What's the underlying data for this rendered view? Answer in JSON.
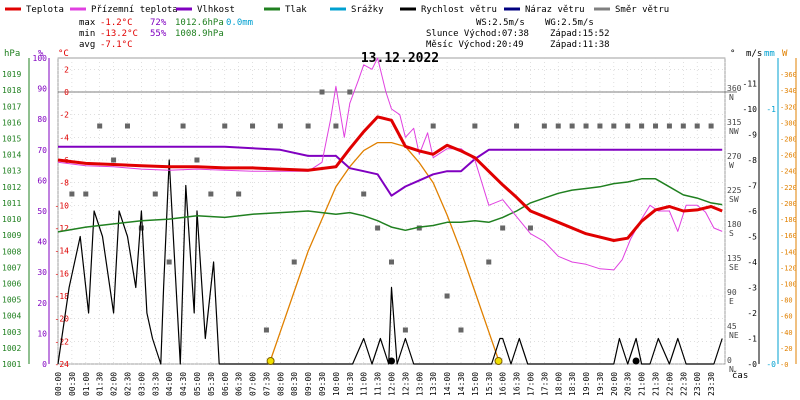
{
  "legend": [
    {
      "label": "Teplota",
      "color": "#e00000"
    },
    {
      "label": "Přízemní teplota",
      "color": "#e040e0"
    },
    {
      "label": "Vlhkost",
      "color": "#8000c0"
    },
    {
      "label": "Tlak",
      "color": "#208020"
    },
    {
      "label": "Srážky",
      "color": "#00a0d0"
    },
    {
      "label": "Rychlost větru",
      "color": "#000000"
    },
    {
      "label": "Náraz větru",
      "color": "#000080"
    },
    {
      "label": "Směr větru",
      "color": "#808080"
    }
  ],
  "stats": {
    "max_label": "max",
    "max_temp": "-1.2°C",
    "max_hum": "72%",
    "max_press": "1012.6hPa",
    "max_rain": "0.0mm",
    "min_label": "min",
    "min_temp": "-13.2°C",
    "min_hum": "55%",
    "min_press": "1008.9hPa",
    "avg_label": "avg",
    "avg_temp": "-7.1°C",
    "ws": "WS:2.5m/s",
    "wg": "WG:2.5m/s",
    "sun": "Slunce Východ:07:38",
    "sun_set": "Západ:15:52",
    "moon": "Měsíc  Východ:20:49",
    "moon_set": "Západ:11:38"
  },
  "chart_data": {
    "type": "line",
    "title": "13.12.2022",
    "xlabel": "čas",
    "x_ticks": [
      "00:00",
      "00:30",
      "01:00",
      "01:30",
      "02:00",
      "02:30",
      "03:00",
      "03:30",
      "04:00",
      "04:30",
      "05:00",
      "05:30",
      "06:00",
      "06:30",
      "07:00",
      "07:30",
      "08:00",
      "08:30",
      "09:00",
      "09:30",
      "10:00",
      "10:30",
      "11:00",
      "11:30",
      "12:00",
      "12:30",
      "13:00",
      "13:30",
      "14:00",
      "14:30",
      "15:00",
      "15:30",
      "16:00",
      "16:30",
      "17:00",
      "17:30",
      "18:00",
      "18:30",
      "19:00",
      "19:30",
      "20:00",
      "20:30",
      "21:00",
      "21:30",
      "22:00",
      "22:30",
      "23:00",
      "23:30"
    ],
    "axes": {
      "hpa": {
        "label": "hPa",
        "ticks": [
          1001,
          1002,
          1003,
          1004,
          1005,
          1006,
          1007,
          1008,
          1009,
          1010,
          1011,
          1012,
          1013,
          1014,
          1015,
          1016,
          1017,
          1018,
          1019
        ],
        "range": [
          1001,
          1020
        ]
      },
      "pct": {
        "label": "%",
        "ticks": [
          0,
          10,
          20,
          30,
          40,
          50,
          60,
          70,
          80,
          90,
          100
        ],
        "range": [
          0,
          100
        ]
      },
      "temp": {
        "label": "°C",
        "ticks": [
          -24,
          -22,
          -20,
          -18,
          -16,
          -14,
          -12,
          -10,
          -8,
          -6,
          -4,
          -2,
          0,
          2
        ],
        "range": [
          -24,
          3
        ]
      },
      "dir": {
        "label": "°",
        "ticks": [
          {
            "v": 0,
            "t": "0",
            "d": "N"
          },
          {
            "v": 45,
            "t": "45",
            "d": "NE"
          },
          {
            "v": 90,
            "t": "90",
            "d": "E"
          },
          {
            "v": 135,
            "t": "135",
            "d": "SE"
          },
          {
            "v": 180,
            "t": "180",
            "d": "S"
          },
          {
            "v": 225,
            "t": "225",
            "d": "SW"
          },
          {
            "v": 270,
            "t": "270",
            "d": "W"
          },
          {
            "v": 315,
            "t": "315",
            "d": "NW"
          },
          {
            "v": 360,
            "t": "360",
            "d": "N"
          }
        ],
        "range": [
          0,
          405
        ]
      },
      "ms": {
        "label": "m/s",
        "ticks": [
          0,
          1,
          2,
          3,
          4,
          5,
          6,
          7,
          8,
          9,
          10,
          11
        ],
        "range": [
          0,
          12
        ]
      },
      "mm": {
        "label": "mm",
        "ticks": [
          0,
          1
        ],
        "range": [
          0,
          1.2
        ]
      },
      "w": {
        "label": "W",
        "ticks": [
          0,
          20,
          40,
          60,
          80,
          100,
          120,
          140,
          160,
          180,
          200,
          220,
          240,
          260,
          280,
          300,
          320,
          340,
          360
        ],
        "range": [
          0,
          380
        ]
      }
    },
    "series": [
      {
        "name": "Teplota",
        "color": "#e00000",
        "axis": "temp",
        "x": [
          0,
          1,
          2,
          3,
          4,
          5,
          6,
          7,
          8,
          9,
          10,
          10.5,
          11,
          11.5,
          12,
          12.5,
          13,
          13.5,
          14,
          14.5,
          15,
          15.5,
          16,
          16.5,
          17,
          18,
          19,
          19.5,
          20,
          20.5,
          21,
          21.5,
          22,
          22.5,
          23,
          23.5,
          23.9
        ],
        "y": [
          -6,
          -6.3,
          -6.4,
          -6.5,
          -6.6,
          -6.6,
          -6.7,
          -6.7,
          -6.8,
          -6.9,
          -6.6,
          -5,
          -3.5,
          -2.2,
          -2.5,
          -4.8,
          -5.2,
          -5.5,
          -4.7,
          -5.2,
          -5.8,
          -7,
          -8.2,
          -9.3,
          -10.5,
          -11.5,
          -12.5,
          -12.8,
          -13.1,
          -12.9,
          -11.4,
          -10.4,
          -10.1,
          -10.5,
          -10.4,
          -10.1,
          -10.5
        ]
      },
      {
        "name": "Přízemní teplota",
        "color": "#e040e0",
        "axis": "temp",
        "x": [
          0,
          1,
          2,
          3,
          4,
          5,
          6,
          7,
          8,
          9,
          9.5,
          9.8,
          10,
          10.3,
          10.5,
          10.8,
          11,
          11.3,
          11.5,
          11.8,
          12,
          12.3,
          12.5,
          12.8,
          13,
          13.3,
          13.5,
          14,
          14.5,
          15,
          15.5,
          16,
          16.5,
          17,
          17.5,
          18,
          18.5,
          19,
          19.5,
          20,
          20.3,
          20.6,
          21,
          21.3,
          21.6,
          22,
          22.3,
          22.6,
          23,
          23.3,
          23.6,
          23.9
        ],
        "y": [
          -6.2,
          -6.5,
          -6.6,
          -6.8,
          -6.9,
          -6.8,
          -6.9,
          -7,
          -7,
          -7,
          -6.2,
          -2.5,
          0.5,
          -4,
          -1,
          1,
          2.4,
          2,
          3,
          0,
          -1.5,
          -2,
          -4,
          -3.2,
          -5.5,
          -3.6,
          -5.8,
          -5,
          -5,
          -6,
          -10,
          -9.5,
          -11,
          -12.5,
          -13.2,
          -14.5,
          -15,
          -15.2,
          -15.6,
          -15.7,
          -14.8,
          -13,
          -11.2,
          -10,
          -10.5,
          -10.5,
          -12.3,
          -10,
          -10,
          -10.6,
          -12,
          -12.3
        ]
      },
      {
        "name": "Vlhkost",
        "color": "#8000c0",
        "axis": "pct",
        "x": [
          0,
          2,
          4,
          6,
          8,
          9,
          10,
          10.5,
          11,
          11.5,
          12,
          12.5,
          13,
          13.5,
          14,
          14.5,
          15,
          15.5,
          16,
          17,
          18,
          20,
          22,
          23.9
        ],
        "y": [
          71,
          71,
          71,
          71,
          70,
          68,
          68,
          64,
          63,
          62,
          55,
          58,
          60,
          62,
          63,
          63,
          67,
          70,
          70,
          70,
          70,
          70,
          70,
          70
        ]
      },
      {
        "name": "Tlak",
        "color": "#208020",
        "axis": "hpa",
        "x": [
          0,
          1,
          2,
          3,
          4,
          5,
          6,
          7,
          8,
          9,
          10,
          10.5,
          11,
          11.5,
          12,
          12.5,
          13,
          13.5,
          14,
          14.5,
          15,
          15.5,
          16,
          16.5,
          17,
          17.5,
          18,
          18.5,
          19,
          19.5,
          20,
          20.5,
          21,
          21.5,
          22,
          22.5,
          23,
          23.5,
          23.9
        ],
        "y": [
          1009.2,
          1009.5,
          1009.7,
          1009.9,
          1010,
          1010.2,
          1010.1,
          1010.3,
          1010.4,
          1010.5,
          1010.3,
          1010.4,
          1010.2,
          1009.9,
          1009.5,
          1009.3,
          1009.5,
          1009.6,
          1009.8,
          1009.8,
          1009.9,
          1009.8,
          1010.1,
          1010.5,
          1011,
          1011.3,
          1011.6,
          1011.8,
          1011.9,
          1012,
          1012.2,
          1012.3,
          1012.5,
          1012.5,
          1012,
          1011.5,
          1011.3,
          1011,
          1010.9
        ]
      },
      {
        "name": "Rychlost větru",
        "color": "#000000",
        "axis": "ms",
        "x": [
          0,
          0.4,
          0.8,
          1.1,
          1.3,
          1.6,
          2.0,
          2.2,
          2.5,
          2.8,
          3.0,
          3.2,
          3.4,
          3.7,
          3.8,
          4.0,
          4.2,
          4.4,
          4.6,
          4.9,
          5.0,
          5.3,
          5.6,
          5.8,
          6,
          7,
          8,
          9,
          10,
          10.3,
          10.6,
          11,
          11.3,
          11.6,
          11.9,
          12.0,
          12.2,
          12.5,
          12.8,
          13,
          14,
          15,
          15.6,
          15.9,
          16.0,
          16.3,
          16.6,
          16.9,
          17,
          18,
          19,
          20,
          20.2,
          20.5,
          20.8,
          21,
          21.3,
          21.6,
          22,
          22.3,
          22.6,
          23,
          23.6,
          23.9
        ],
        "y": [
          0,
          3,
          5,
          2,
          6,
          5,
          2,
          6,
          5,
          3,
          6,
          2,
          1,
          0,
          3,
          8,
          4,
          0,
          7,
          2,
          6,
          1,
          4,
          0,
          0,
          0,
          0,
          0,
          0,
          0,
          0,
          1,
          0,
          1,
          0,
          3,
          0,
          1,
          0,
          0,
          0,
          0,
          0,
          1,
          1,
          0,
          1,
          0,
          0,
          0,
          0,
          0,
          1,
          0,
          1,
          0,
          0,
          1,
          0,
          1,
          0,
          0,
          0,
          1
        ]
      },
      {
        "name": "Slunce",
        "color": "#e08000",
        "axis": "w",
        "x": [
          7.6,
          8,
          8.5,
          9,
          9.5,
          10,
          10.5,
          11,
          11.5,
          12,
          12.5,
          13,
          13.5,
          14,
          14.5,
          15,
          15.5,
          15.9
        ],
        "y": [
          0,
          40,
          90,
          140,
          180,
          220,
          245,
          265,
          275,
          275,
          270,
          250,
          225,
          185,
          140,
          90,
          40,
          0
        ]
      }
    ],
    "wind_direction_deg": [
      [
        0.5,
        225
      ],
      [
        1,
        225
      ],
      [
        1.5,
        315
      ],
      [
        2,
        270
      ],
      [
        2.5,
        315
      ],
      [
        3,
        180
      ],
      [
        3.5,
        225
      ],
      [
        4,
        135
      ],
      [
        4.5,
        315
      ],
      [
        5,
        270
      ],
      [
        5.5,
        225
      ],
      [
        6,
        315
      ],
      [
        6.5,
        225
      ],
      [
        7,
        315
      ],
      [
        7.5,
        45
      ],
      [
        8,
        315
      ],
      [
        8.5,
        135
      ],
      [
        9,
        315
      ],
      [
        9.5,
        360
      ],
      [
        10,
        315
      ],
      [
        10.5,
        360
      ],
      [
        11,
        225
      ],
      [
        11.5,
        180
      ],
      [
        12,
        135
      ],
      [
        12.5,
        45
      ],
      [
        13,
        180
      ],
      [
        13.5,
        315
      ],
      [
        14,
        90
      ],
      [
        14.5,
        45
      ],
      [
        15,
        315
      ],
      [
        15.5,
        135
      ],
      [
        16,
        180
      ],
      [
        16.5,
        315
      ],
      [
        17,
        180
      ],
      [
        17.5,
        315
      ],
      [
        18,
        315
      ],
      [
        18.5,
        315
      ],
      [
        19,
        315
      ],
      [
        19.5,
        315
      ],
      [
        20,
        315
      ],
      [
        20.5,
        315
      ],
      [
        21,
        315
      ],
      [
        21.5,
        315
      ],
      [
        22,
        315
      ],
      [
        22.5,
        315
      ],
      [
        23,
        315
      ],
      [
        23.5,
        315
      ]
    ],
    "sun_markers": [
      7.65,
      15.85
    ],
    "moon_markers": [
      12,
      20.8
    ]
  }
}
